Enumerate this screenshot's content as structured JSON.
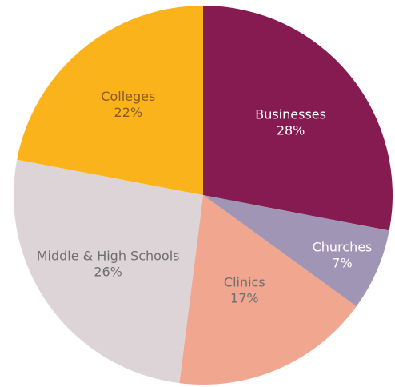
{
  "chart_data": {
    "type": "pie",
    "start_position": "12 o'clock",
    "direction": "clockwise",
    "slices": [
      {
        "label": "Businesses",
        "value": 28,
        "value_text": "28%",
        "color": "#861b52",
        "text_color": "#ffffff"
      },
      {
        "label": "Churches",
        "value": 7,
        "value_text": "7%",
        "color": "#a195b6",
        "text_color": "#ffffff"
      },
      {
        "label": "Clinics",
        "value": 17,
        "value_text": "17%",
        "color": "#f1a690",
        "text_color": "#6f6f6f"
      },
      {
        "label": "Middle & High Schools",
        "value": 26,
        "value_text": "26%",
        "color": "#ddd4d7",
        "text_color": "#6f6f6f"
      },
      {
        "label": "Colleges",
        "value": 22,
        "value_text": "22%",
        "color": "#fbb31b",
        "text_color": "#8a5a23"
      }
    ]
  }
}
